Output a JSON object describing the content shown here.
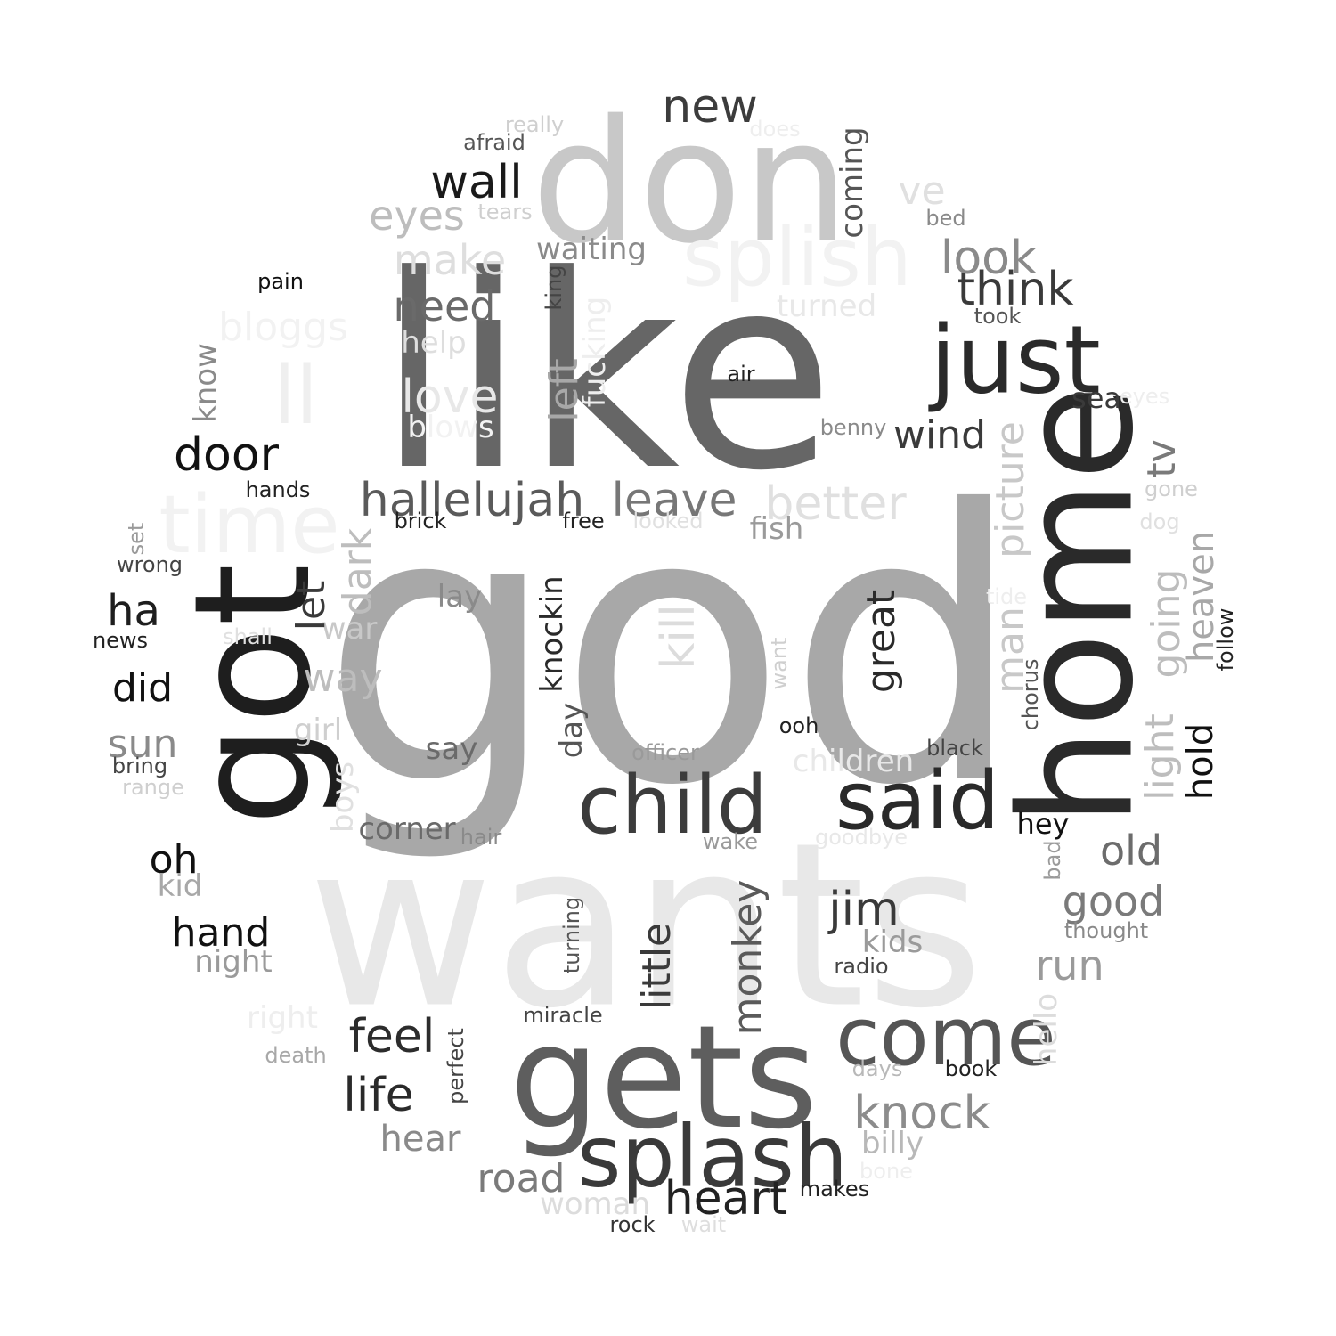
{
  "words": [
    {
      "text": "god",
      "color": "#a8a8a8"
    },
    {
      "text": "like",
      "color": "#666666"
    },
    {
      "text": "wants",
      "color": "#e8e8e8"
    },
    {
      "text": "don",
      "color": "#c8c8c8"
    },
    {
      "text": "home",
      "color": "#2a2a2a"
    },
    {
      "text": "got",
      "color": "#1e1e1e"
    },
    {
      "text": "gets",
      "color": "#5e5e5e"
    },
    {
      "text": "splash",
      "color": "#3a3a3a"
    },
    {
      "text": "child",
      "color": "#3c3c3c"
    },
    {
      "text": "said",
      "color": "#2a2a2a"
    },
    {
      "text": "just",
      "color": "#2a2a2a"
    },
    {
      "text": "come",
      "color": "#555555"
    },
    {
      "text": "splish",
      "color": "#f2f2f2"
    },
    {
      "text": "time",
      "color": "#f2f2f2"
    },
    {
      "text": "ll",
      "color": "#efefef"
    },
    {
      "text": "hallelujah",
      "color": "#5a5a5a"
    },
    {
      "text": "leave",
      "color": "#777777"
    },
    {
      "text": "better",
      "color": "#e0e0e0"
    },
    {
      "text": "think",
      "color": "#3a3a3a"
    },
    {
      "text": "look",
      "color": "#8a8a8a"
    },
    {
      "text": "new",
      "color": "#3c3c3c"
    },
    {
      "text": "wall",
      "color": "#1a1a1a"
    },
    {
      "text": "eyes",
      "color": "#bdbdbd"
    },
    {
      "text": "make",
      "color": "#dedede"
    },
    {
      "text": "need",
      "color": "#6a6a6a"
    },
    {
      "text": "love",
      "color": "#e8e8e8"
    },
    {
      "text": "door",
      "color": "#111111"
    },
    {
      "text": "wind",
      "color": "#3a3a3a"
    },
    {
      "text": "heart",
      "color": "#222222"
    },
    {
      "text": "life",
      "color": "#2a2a2a"
    },
    {
      "text": "feel",
      "color": "#2c2c2c"
    },
    {
      "text": "knock",
      "color": "#8c8c8c"
    },
    {
      "text": "good",
      "color": "#7a7a7a"
    },
    {
      "text": "old",
      "color": "#6c6c6c"
    },
    {
      "text": "run",
      "color": "#9a9a9a"
    },
    {
      "text": "jim",
      "color": "#3a3a3a"
    },
    {
      "text": "road",
      "color": "#7a7a7a"
    },
    {
      "text": "hand",
      "color": "#111111"
    },
    {
      "text": "ha",
      "color": "#1e1e1e"
    },
    {
      "text": "oh",
      "color": "#111111"
    },
    {
      "text": "did",
      "color": "#111111"
    },
    {
      "text": "sun",
      "color": "#8a8a8a"
    },
    {
      "text": "way",
      "color": "#bdbdbd"
    },
    {
      "text": "hear",
      "color": "#8a8a8a"
    },
    {
      "text": "billy",
      "color": "#b8b8b8"
    },
    {
      "text": "kids",
      "color": "#9a9a9a"
    },
    {
      "text": "fish",
      "color": "#9a9a9a"
    },
    {
      "text": "ve",
      "color": "#e0e0e0"
    },
    {
      "text": "bloggs",
      "color": "#f2f2f2"
    },
    {
      "text": "corner",
      "color": "#6a6a6a"
    },
    {
      "text": "night",
      "color": "#9a9a9a"
    },
    {
      "text": "children",
      "color": "#e8e8e8"
    },
    {
      "text": "waiting",
      "color": "#8a8a8a"
    },
    {
      "text": "help",
      "color": "#dedede"
    },
    {
      "text": "blows",
      "color": "#f2f2f2"
    },
    {
      "text": "say",
      "color": "#6a6a6a"
    },
    {
      "text": "lay",
      "color": "#8a8a8a"
    },
    {
      "text": "girl",
      "color": "#cfcfcf"
    },
    {
      "text": "war",
      "color": "#c8c8c8"
    },
    {
      "text": "kid",
      "color": "#a8a8a8"
    },
    {
      "text": "right",
      "color": "#eeeeee"
    },
    {
      "text": "woman",
      "color": "#dcdcdc"
    },
    {
      "text": "turned",
      "color": "#e8e8e8"
    },
    {
      "text": "sea",
      "color": "#3a3a3a"
    },
    {
      "text": "hey",
      "color": "#111111"
    },
    {
      "text": "officer",
      "color": "#9a9a9a"
    },
    {
      "text": "benny",
      "color": "#8a8a8a"
    },
    {
      "text": "black",
      "color": "#444444"
    },
    {
      "text": "ooh",
      "color": "#222222"
    },
    {
      "text": "air",
      "color": "#222222"
    },
    {
      "text": "pain",
      "color": "#111111"
    },
    {
      "text": "hands",
      "color": "#222222"
    },
    {
      "text": "brick",
      "color": "#222222"
    },
    {
      "text": "free",
      "color": "#222222"
    },
    {
      "text": "looked",
      "color": "#e0e0e0"
    },
    {
      "text": "wrong",
      "color": "#444444"
    },
    {
      "text": "news",
      "color": "#222222"
    },
    {
      "text": "shall",
      "color": "#e0e0e0"
    },
    {
      "text": "bring",
      "color": "#444444"
    },
    {
      "text": "range",
      "color": "#cfcfcf"
    },
    {
      "text": "hair",
      "color": "#8a8a8a"
    },
    {
      "text": "wake",
      "color": "#9a9a9a"
    },
    {
      "text": "goodbye",
      "color": "#e8e8e8"
    },
    {
      "text": "thought",
      "color": "#8a8a8a"
    },
    {
      "text": "radio",
      "color": "#444444"
    },
    {
      "text": "miracle",
      "color": "#444444"
    },
    {
      "text": "death",
      "color": "#a8a8a8"
    },
    {
      "text": "days",
      "color": "#b8b8b8"
    },
    {
      "text": "book",
      "color": "#222222"
    },
    {
      "text": "bone",
      "color": "#eeeeee"
    },
    {
      "text": "makes",
      "color": "#222222"
    },
    {
      "text": "rock",
      "color": "#333333"
    },
    {
      "text": "wait",
      "color": "#dedede"
    },
    {
      "text": "afraid",
      "color": "#555555"
    },
    {
      "text": "really",
      "color": "#cfcfcf"
    },
    {
      "text": "does",
      "color": "#eeeeee"
    },
    {
      "text": "tears",
      "color": "#cfcfcf"
    },
    {
      "text": "bed",
      "color": "#8a8a8a"
    },
    {
      "text": "took",
      "color": "#555555"
    },
    {
      "text": "eyes",
      "color": "#eeeeee"
    },
    {
      "text": "gone",
      "color": "#cfcfcf"
    },
    {
      "text": "dog",
      "color": "#e0e0e0"
    },
    {
      "text": "tide",
      "color": "#eeeeee"
    },
    {
      "text": "kill",
      "color": "#dcdcdc"
    },
    {
      "text": "picture",
      "color": "#c8c8c8"
    },
    {
      "text": "man",
      "color": "#c8c8c8"
    },
    {
      "text": "great",
      "color": "#2a2a2a"
    },
    {
      "text": "little",
      "color": "#3a3a3a"
    },
    {
      "text": "monkey",
      "color": "#5a5a5a"
    },
    {
      "text": "light",
      "color": "#bdbdbd"
    },
    {
      "text": "going",
      "color": "#bdbdbd"
    },
    {
      "text": "heaven",
      "color": "#a8a8a8"
    },
    {
      "text": "hold",
      "color": "#111111"
    },
    {
      "text": "tv",
      "color": "#7a7a7a"
    },
    {
      "text": "let",
      "color": "#3a3a3a"
    },
    {
      "text": "dark",
      "color": "#bdbdbd"
    },
    {
      "text": "knockin",
      "color": "#2a2a2a"
    },
    {
      "text": "left",
      "color": "#a8a8a8"
    },
    {
      "text": "fucking",
      "color": "#eeeeee"
    },
    {
      "text": "coming",
      "color": "#555555"
    },
    {
      "text": "king",
      "color": "#444444"
    },
    {
      "text": "know",
      "color": "#8a8a8a"
    },
    {
      "text": "day",
      "color": "#555555"
    },
    {
      "text": "boys",
      "color": "#e0e0e0"
    },
    {
      "text": "perfect",
      "color": "#444444"
    },
    {
      "text": "turning",
      "color": "#555555"
    },
    {
      "text": "chorus",
      "color": "#555555"
    },
    {
      "text": "want",
      "color": "#cfcfcf"
    },
    {
      "text": "hello",
      "color": "#dcdcdc"
    },
    {
      "text": "bad",
      "color": "#9a9a9a"
    },
    {
      "text": "follow",
      "color": "#222222"
    },
    {
      "text": "set",
      "color": "#9a9a9a"
    }
  ]
}
